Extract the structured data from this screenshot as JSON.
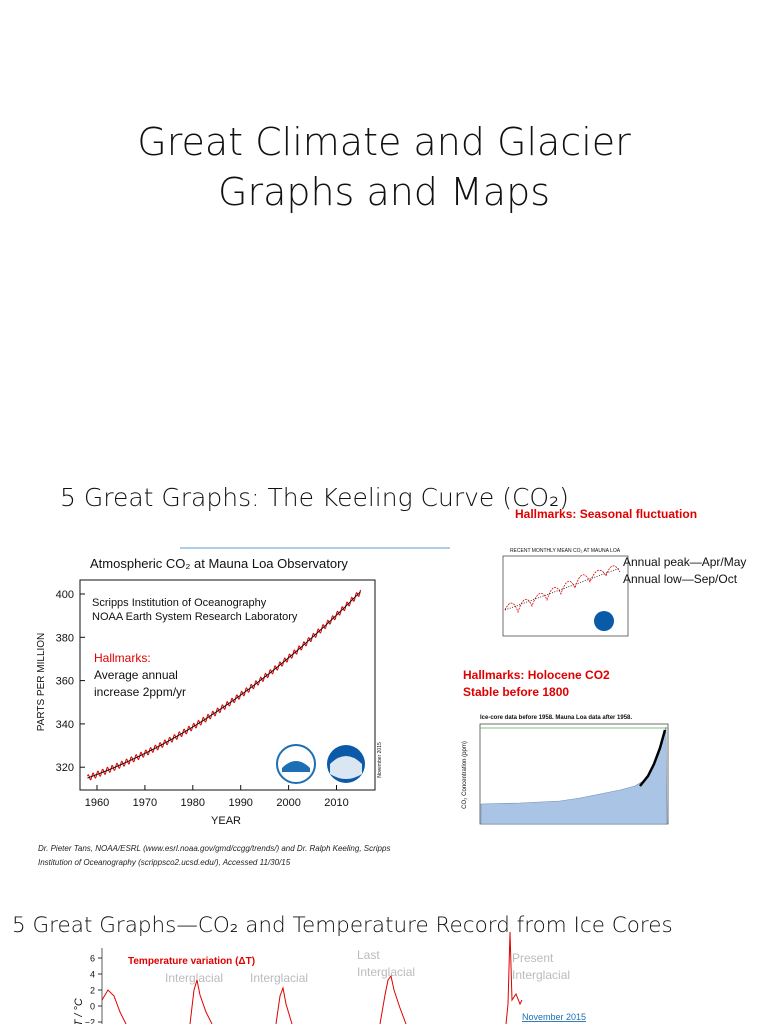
{
  "slides": [
    {
      "title": [
        "Great Climate and Glacier",
        "Graphs and Maps"
      ]
    },
    {
      "title": "5 Great Graphs: The Keeling Curve (CO₂)",
      "hallmark_top": "Hallmarks:  Seasonal fluctuation",
      "main_chart": {
        "title": "Atmospheric CO₂ at Mauna Loa Observatory",
        "sources": [
          "Scripps Institution of Oceanography",
          "NOAA Earth System Research Laboratory"
        ],
        "hallmark_label": "Hallmarks:",
        "hallmark_lines": [
          "Average annual",
          "increase 2ppm/yr"
        ],
        "yticks": [
          "400",
          "380",
          "360",
          "340",
          "320"
        ],
        "xticks": [
          "1960",
          "1970",
          "1980",
          "1990",
          "2000",
          "2010"
        ],
        "ylabel": "PARTS PER MILLION",
        "xlabel": "YEAR",
        "date": "November 2015"
      },
      "citation": [
        "Dr. Pieter Tans, NOAA/ESRL (www.esrl.noaa.gov/gmd/ccgg/trends/) and Dr. Ralph Keeling, Scripps",
        "Institution of Oceanography (scrippsco2.ucsd.edu/), Accessed  11/30/15"
      ],
      "inset": {
        "title": "RECENT MONTHLY MEAN CO₂ AT MAUNA LOA",
        "notes": [
          "Annual peak—Apr/May",
          "Annual low—Sep/Oct"
        ]
      },
      "hallmark_bottom": [
        "Hallmarks:  Holocene CO2",
        "Stable before 1800"
      ],
      "ice_core": {
        "title": "Ice-core data before 1958. Mauna Loa data after 1958.",
        "ylabel": "CO₂ Concentration (ppm)"
      }
    },
    {
      "title": "5 Great Graphs—CO₂ and Temperature Record from Ice Cores",
      "chart": {
        "yticks": [
          "6",
          "4",
          "2",
          "0",
          "−2"
        ],
        "ylabel": "ΔT / °C",
        "legend": "Temperature variation (ΔT)",
        "labels": [
          "Interglacial",
          "Interglacial",
          "Last",
          "Interglacial",
          "Present",
          "Interglacial"
        ],
        "date": "November 2015"
      }
    }
  ]
}
